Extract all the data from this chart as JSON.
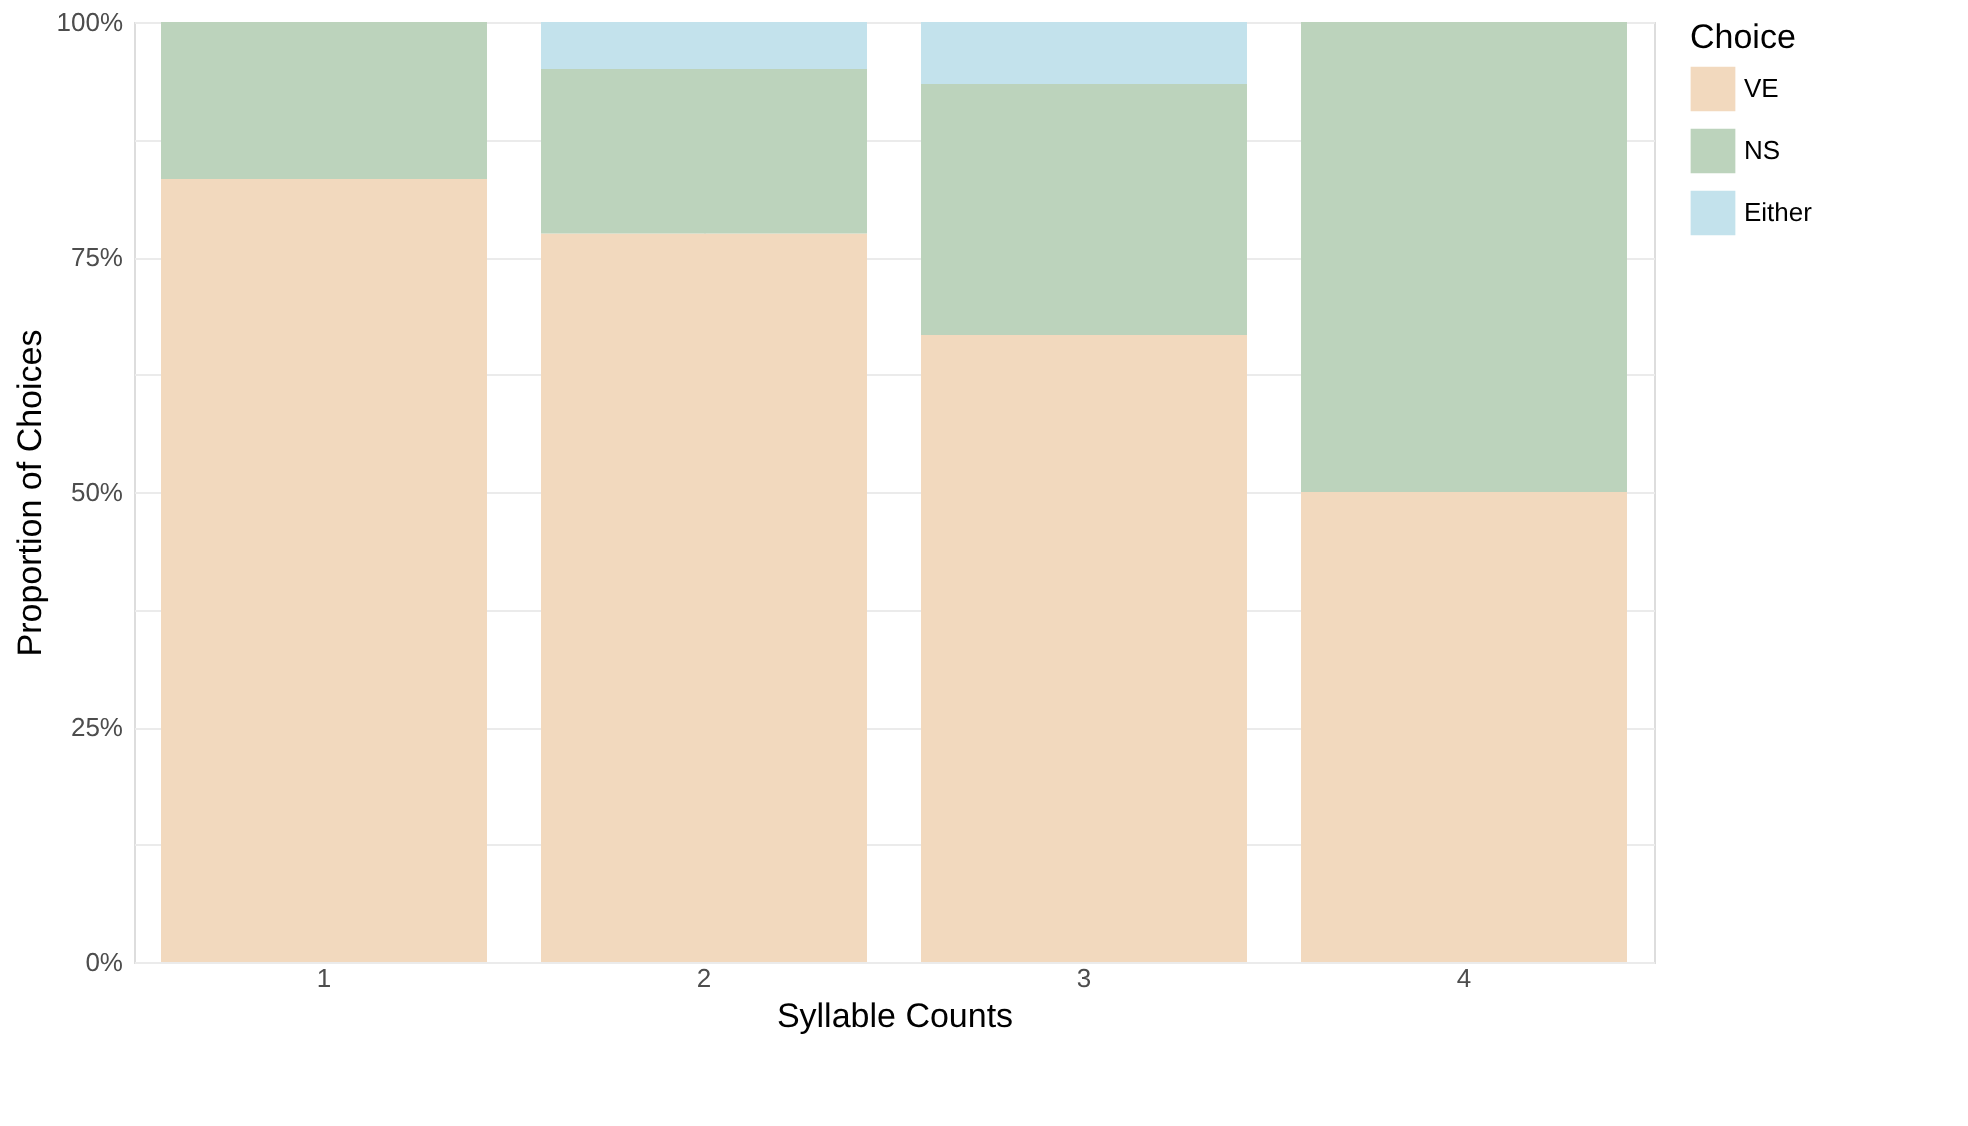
{
  "chart_data": {
    "type": "bar",
    "stacked": true,
    "xlabel": "Syllable Counts",
    "ylabel": "Proportion of Choices",
    "legend_title": "Choice",
    "legend": "right",
    "grid": true,
    "categories": [
      "1",
      "2",
      "3",
      "4"
    ],
    "series": [
      {
        "name": "VE",
        "color": "#f2d9be",
        "values": [
          83.3,
          77.5,
          66.7,
          50
        ]
      },
      {
        "name": "NS",
        "color": "#bcd3bc",
        "values": [
          16.7,
          17.5,
          26.7,
          50
        ]
      },
      {
        "name": "Either",
        "color": "#c3e2ec",
        "values": [
          0,
          5,
          6.6,
          0
        ]
      }
    ],
    "ylim": [
      0,
      100
    ],
    "yticks": [
      {
        "value": 0,
        "label": "0%"
      },
      {
        "value": 12.5,
        "label": null
      },
      {
        "value": 25,
        "label": "25%"
      },
      {
        "value": 37.5,
        "label": null
      },
      {
        "value": 50,
        "label": "50%"
      },
      {
        "value": 62.5,
        "label": null
      },
      {
        "value": 75,
        "label": "75%"
      },
      {
        "value": 87.5,
        "label": null
      },
      {
        "value": 100,
        "label": "100%"
      }
    ]
  }
}
